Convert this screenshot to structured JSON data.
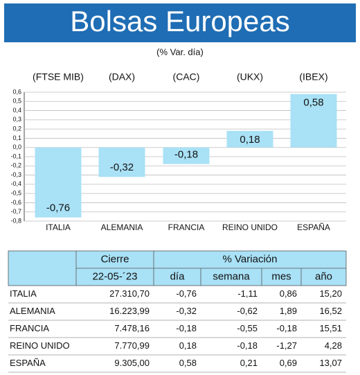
{
  "chart_data": {
    "type": "bar",
    "title": "Bolsas Europeas",
    "subtitle": "(% Var. día)",
    "tickers": [
      "(FTSE MIB)",
      "(DAX)",
      "(CAC)",
      "(UKX)",
      "(IBEX)"
    ],
    "categories": [
      "ITALIA",
      "ALEMANIA",
      "FRANCIA",
      "REINO UNIDO",
      "ESPAÑA"
    ],
    "values": [
      -0.76,
      -0.32,
      -0.18,
      0.18,
      0.58
    ],
    "value_labels": [
      "-0,76",
      "-0,32",
      "-0,18",
      "0,18",
      "0,58"
    ],
    "color": "#a9e1f6",
    "grid": true,
    "ylim": [
      -0.8,
      0.6
    ],
    "yticks": [
      {
        "value": 0.6,
        "label": "0,6"
      },
      {
        "value": 0.5,
        "label": "0,5"
      },
      {
        "value": 0.4,
        "label": "0,4"
      },
      {
        "value": 0.3,
        "label": "0,3"
      },
      {
        "value": 0.2,
        "label": "0,2"
      },
      {
        "value": 0.1,
        "label": "0,1"
      },
      {
        "value": 0.0,
        "label": "0,0"
      },
      {
        "value": -0.1,
        "label": "-0,1"
      },
      {
        "value": -0.2,
        "label": "-0,2"
      },
      {
        "value": -0.3,
        "label": "-0,3"
      },
      {
        "value": -0.4,
        "label": "-0,4"
      },
      {
        "value": -0.5,
        "label": "-0,5"
      },
      {
        "value": -0.6,
        "label": "-0,6"
      },
      {
        "value": -0.7,
        "label": "-0,7"
      },
      {
        "value": -0.8,
        "label": "-0,8"
      }
    ]
  },
  "table": {
    "header": [
      [
        "Cierre",
        "% Variación"
      ],
      [
        "22-05-´23",
        "día",
        "semana",
        "mes",
        "año"
      ]
    ],
    "rows": [
      [
        "ITALIA",
        "27.310,70",
        "-0,76",
        "-1,11",
        "0,86",
        "15,20"
      ],
      [
        "ALEMANIA",
        "16.223,99",
        "-0,32",
        "-0,62",
        "1,89",
        "16,52"
      ],
      [
        "FRANCIA",
        "7.478,16",
        "-0,18",
        "-0,55",
        "-0,18",
        "15,51"
      ],
      [
        "REINO UNIDO",
        "7.770,99",
        "0,18",
        "-0,18",
        "-1,27",
        "4,28"
      ],
      [
        "ESPAÑA",
        "9.305,00",
        "0,58",
        "0,21",
        "0,69",
        "13,07"
      ]
    ]
  }
}
